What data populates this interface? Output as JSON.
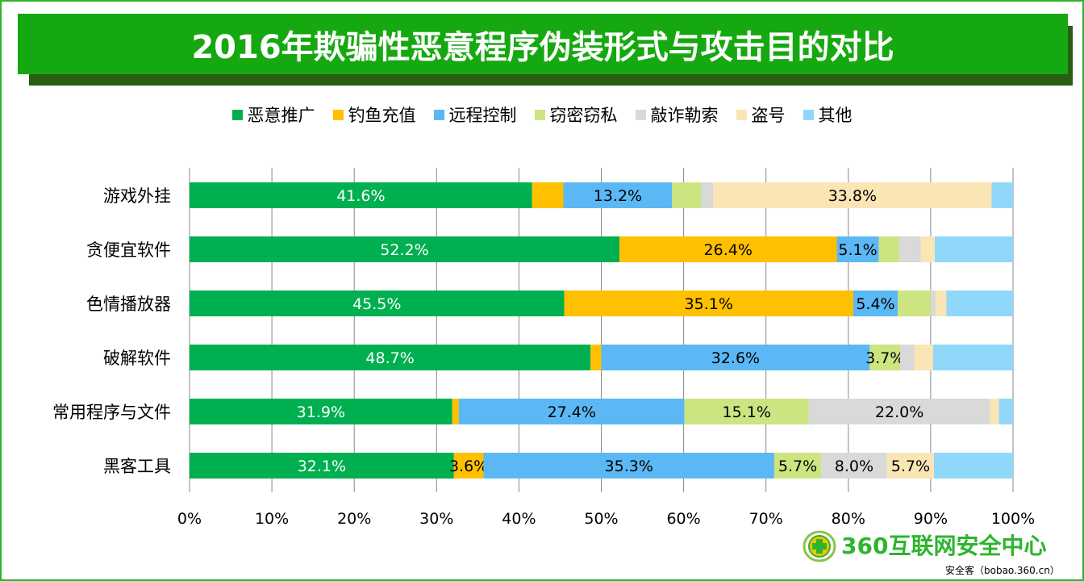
{
  "title": "2016年欺骗性恶意程序伪装形式与攻击目的对比",
  "chart_data": {
    "type": "bar",
    "orientation": "horizontal",
    "stacked": "percent",
    "title": "2016年欺骗性恶意程序伪装形式与攻击目的对比",
    "legend_position": "top",
    "grid": true,
    "xlim": [
      0,
      100
    ],
    "x_ticks": [
      "0%",
      "10%",
      "20%",
      "30%",
      "40%",
      "50%",
      "60%",
      "70%",
      "80%",
      "90%",
      "100%"
    ],
    "categories": [
      "游戏外挂",
      "贪便宜软件",
      "色情播放器",
      "破解软件",
      "常用程序与文件",
      "黑客工具"
    ],
    "series": [
      {
        "name": "恶意推广",
        "color": "#00b050",
        "values": [
          41.6,
          52.2,
          45.5,
          48.7,
          31.9,
          32.1
        ],
        "labels": [
          "41.6%",
          "52.2%",
          "45.5%",
          "48.7%",
          "31.9%",
          "32.1%"
        ]
      },
      {
        "name": "钓鱼充值",
        "color": "#ffc000",
        "values": [
          3.8,
          26.4,
          35.1,
          1.3,
          0.8,
          3.6
        ],
        "labels": [
          null,
          "26.4%",
          "35.1%",
          null,
          null,
          "3.6%"
        ]
      },
      {
        "name": "远程控制",
        "color": "#5bb8f5",
        "values": [
          13.2,
          5.1,
          5.4,
          32.6,
          27.4,
          35.3
        ],
        "labels": [
          "13.2%",
          "5.1%",
          "5.4%",
          "32.6%",
          "27.4%",
          "35.3%"
        ]
      },
      {
        "name": "窃密窃私",
        "color": "#cce580",
        "values": [
          3.5,
          2.5,
          4.0,
          3.7,
          15.1,
          5.7
        ],
        "labels": [
          null,
          null,
          null,
          "3.7%",
          "15.1%",
          "5.7%"
        ]
      },
      {
        "name": "敲诈勒索",
        "color": "#d9d9d9",
        "values": [
          1.5,
          2.6,
          0.6,
          1.7,
          22.0,
          8.0
        ],
        "labels": [
          null,
          null,
          null,
          null,
          "22.0%",
          "8.0%"
        ]
      },
      {
        "name": "盗号",
        "color": "#fae5b5",
        "values": [
          33.8,
          1.7,
          1.3,
          2.3,
          1.1,
          5.7
        ],
        "labels": [
          "33.8%",
          null,
          null,
          null,
          null,
          "5.7%"
        ]
      },
      {
        "name": "其他",
        "color": "#8fd8fa",
        "values": [
          2.6,
          9.5,
          8.1,
          9.7,
          1.7,
          9.6
        ],
        "labels": [
          null,
          null,
          null,
          null,
          null,
          null
        ]
      }
    ]
  },
  "logo": {
    "text": "360互联网安全中心",
    "site": "安全客（bobao.360.cn）"
  }
}
